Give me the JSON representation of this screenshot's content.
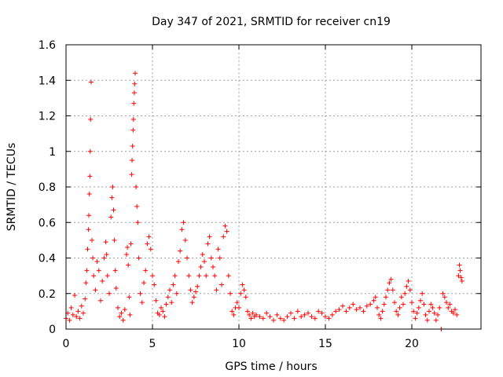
{
  "chart_data": {
    "type": "scatter",
    "title": "Day 347 of 2021, SRMTID for receiver cn19",
    "xlabel": "GPS time / hours",
    "ylabel": "SRMTID / TECUs",
    "xlim": [
      0,
      24
    ],
    "ylim": [
      0,
      1.6
    ],
    "xticks": [
      {
        "value": 0,
        "label": "0"
      },
      {
        "value": 5,
        "label": "5"
      },
      {
        "value": 10,
        "label": "10"
      },
      {
        "value": 15,
        "label": "15"
      },
      {
        "value": 20,
        "label": "20"
      }
    ],
    "yticks": [
      {
        "value": 0,
        "label": "0"
      },
      {
        "value": 0.2,
        "label": "0.2"
      },
      {
        "value": 0.4,
        "label": "0.4"
      },
      {
        "value": 0.6,
        "label": "0.6"
      },
      {
        "value": 0.8,
        "label": "0.8"
      },
      {
        "value": 1.0,
        "label": "1"
      },
      {
        "value": 1.2,
        "label": "1.2"
      },
      {
        "value": 1.4,
        "label": "1.4"
      },
      {
        "value": 1.6,
        "label": "1.6"
      }
    ],
    "grid": true,
    "marker": "plus",
    "color": "#ff0000",
    "series": [
      {
        "name": "SRMTID",
        "points": [
          [
            0.0,
            0.06
          ],
          [
            0.1,
            0.09
          ],
          [
            0.2,
            0.05
          ],
          [
            0.3,
            0.12
          ],
          [
            0.4,
            0.08
          ],
          [
            0.5,
            0.19
          ],
          [
            0.6,
            0.07
          ],
          [
            0.7,
            0.1
          ],
          [
            0.8,
            0.06
          ],
          [
            0.9,
            0.13
          ],
          [
            1.0,
            0.09
          ],
          [
            1.1,
            0.17
          ],
          [
            1.15,
            0.26
          ],
          [
            1.2,
            0.33
          ],
          [
            1.25,
            0.45
          ],
          [
            1.3,
            0.56
          ],
          [
            1.32,
            0.64
          ],
          [
            1.35,
            0.76
          ],
          [
            1.38,
            0.86
          ],
          [
            1.4,
            1.0
          ],
          [
            1.42,
            1.18
          ],
          [
            1.45,
            1.39
          ],
          [
            1.5,
            0.5
          ],
          [
            1.55,
            0.4
          ],
          [
            1.6,
            0.3
          ],
          [
            1.7,
            0.22
          ],
          [
            1.8,
            0.38
          ],
          [
            1.9,
            0.33
          ],
          [
            2.0,
            0.16
          ],
          [
            2.1,
            0.27
          ],
          [
            2.2,
            0.4
          ],
          [
            2.3,
            0.49
          ],
          [
            2.35,
            0.42
          ],
          [
            2.4,
            0.3
          ],
          [
            2.5,
            0.2
          ],
          [
            2.6,
            0.63
          ],
          [
            2.65,
            0.74
          ],
          [
            2.7,
            0.8
          ],
          [
            2.75,
            0.67
          ],
          [
            2.8,
            0.5
          ],
          [
            2.85,
            0.33
          ],
          [
            2.9,
            0.23
          ],
          [
            3.0,
            0.12
          ],
          [
            3.1,
            0.07
          ],
          [
            3.2,
            0.09
          ],
          [
            3.3,
            0.05
          ],
          [
            3.4,
            0.11
          ],
          [
            3.5,
            0.42
          ],
          [
            3.55,
            0.46
          ],
          [
            3.6,
            0.36
          ],
          [
            3.65,
            0.18
          ],
          [
            3.7,
            0.08
          ],
          [
            3.75,
            0.48
          ],
          [
            3.8,
            0.87
          ],
          [
            3.82,
            0.95
          ],
          [
            3.85,
            1.03
          ],
          [
            3.88,
            1.12
          ],
          [
            3.9,
            1.18
          ],
          [
            3.92,
            1.27
          ],
          [
            3.95,
            1.33
          ],
          [
            3.97,
            1.38
          ],
          [
            4.0,
            1.44
          ],
          [
            4.05,
            0.8
          ],
          [
            4.1,
            0.69
          ],
          [
            4.15,
            0.6
          ],
          [
            4.2,
            0.4
          ],
          [
            4.3,
            0.2
          ],
          [
            4.4,
            0.15
          ],
          [
            4.5,
            0.26
          ],
          [
            4.6,
            0.33
          ],
          [
            4.7,
            0.48
          ],
          [
            4.8,
            0.52
          ],
          [
            4.9,
            0.45
          ],
          [
            5.0,
            0.3
          ],
          [
            5.1,
            0.25
          ],
          [
            5.2,
            0.16
          ],
          [
            5.3,
            0.09
          ],
          [
            5.4,
            0.08
          ],
          [
            5.5,
            0.12
          ],
          [
            5.6,
            0.1
          ],
          [
            5.7,
            0.07
          ],
          [
            5.8,
            0.14
          ],
          [
            5.9,
            0.18
          ],
          [
            6.0,
            0.22
          ],
          [
            6.1,
            0.15
          ],
          [
            6.2,
            0.25
          ],
          [
            6.3,
            0.3
          ],
          [
            6.4,
            0.2
          ],
          [
            6.5,
            0.38
          ],
          [
            6.6,
            0.44
          ],
          [
            6.7,
            0.56
          ],
          [
            6.8,
            0.6
          ],
          [
            6.9,
            0.5
          ],
          [
            7.0,
            0.4
          ],
          [
            7.1,
            0.3
          ],
          [
            7.2,
            0.22
          ],
          [
            7.3,
            0.15
          ],
          [
            7.4,
            0.18
          ],
          [
            7.5,
            0.21
          ],
          [
            7.6,
            0.24
          ],
          [
            7.7,
            0.3
          ],
          [
            7.8,
            0.35
          ],
          [
            7.9,
            0.42
          ],
          [
            8.0,
            0.38
          ],
          [
            8.1,
            0.3
          ],
          [
            8.2,
            0.48
          ],
          [
            8.3,
            0.52
          ],
          [
            8.4,
            0.4
          ],
          [
            8.5,
            0.35
          ],
          [
            8.6,
            0.3
          ],
          [
            8.7,
            0.22
          ],
          [
            8.8,
            0.45
          ],
          [
            8.9,
            0.4
          ],
          [
            9.0,
            0.25
          ],
          [
            9.1,
            0.52
          ],
          [
            9.2,
            0.58
          ],
          [
            9.3,
            0.55
          ],
          [
            9.4,
            0.3
          ],
          [
            9.5,
            0.2
          ],
          [
            9.6,
            0.1
          ],
          [
            9.7,
            0.08
          ],
          [
            9.8,
            0.12
          ],
          [
            9.9,
            0.15
          ],
          [
            10.0,
            0.12
          ],
          [
            10.1,
            0.2
          ],
          [
            10.2,
            0.25
          ],
          [
            10.3,
            0.22
          ],
          [
            10.4,
            0.18
          ],
          [
            10.5,
            0.1
          ],
          [
            10.6,
            0.08
          ],
          [
            10.7,
            0.06
          ],
          [
            10.8,
            0.09
          ],
          [
            10.9,
            0.07
          ],
          [
            11.0,
            0.08
          ],
          [
            11.2,
            0.07
          ],
          [
            11.4,
            0.06
          ],
          [
            11.6,
            0.09
          ],
          [
            11.8,
            0.07
          ],
          [
            12.0,
            0.05
          ],
          [
            12.2,
            0.08
          ],
          [
            12.4,
            0.06
          ],
          [
            12.6,
            0.05
          ],
          [
            12.8,
            0.07
          ],
          [
            13.0,
            0.09
          ],
          [
            13.2,
            0.06
          ],
          [
            13.4,
            0.1
          ],
          [
            13.6,
            0.07
          ],
          [
            13.8,
            0.08
          ],
          [
            14.0,
            0.09
          ],
          [
            14.2,
            0.07
          ],
          [
            14.4,
            0.06
          ],
          [
            14.6,
            0.1
          ],
          [
            14.8,
            0.09
          ],
          [
            15.0,
            0.07
          ],
          [
            15.2,
            0.06
          ],
          [
            15.4,
            0.08
          ],
          [
            15.6,
            0.1
          ],
          [
            15.8,
            0.11
          ],
          [
            16.0,
            0.13
          ],
          [
            16.2,
            0.1
          ],
          [
            16.4,
            0.12
          ],
          [
            16.6,
            0.14
          ],
          [
            16.8,
            0.11
          ],
          [
            17.0,
            0.12
          ],
          [
            17.2,
            0.1
          ],
          [
            17.4,
            0.13
          ],
          [
            17.6,
            0.14
          ],
          [
            17.8,
            0.16
          ],
          [
            17.9,
            0.18
          ],
          [
            18.0,
            0.12
          ],
          [
            18.1,
            0.08
          ],
          [
            18.2,
            0.06
          ],
          [
            18.3,
            0.1
          ],
          [
            18.4,
            0.14
          ],
          [
            18.5,
            0.18
          ],
          [
            18.6,
            0.22
          ],
          [
            18.7,
            0.26
          ],
          [
            18.8,
            0.28
          ],
          [
            18.9,
            0.22
          ],
          [
            19.0,
            0.15
          ],
          [
            19.1,
            0.1
          ],
          [
            19.2,
            0.08
          ],
          [
            19.3,
            0.12
          ],
          [
            19.4,
            0.18
          ],
          [
            19.5,
            0.14
          ],
          [
            19.6,
            0.2
          ],
          [
            19.7,
            0.24
          ],
          [
            19.8,
            0.27
          ],
          [
            19.9,
            0.22
          ],
          [
            20.0,
            0.15
          ],
          [
            20.1,
            0.1
          ],
          [
            20.2,
            0.06
          ],
          [
            20.3,
            0.09
          ],
          [
            20.4,
            0.12
          ],
          [
            20.5,
            0.16
          ],
          [
            20.6,
            0.2
          ],
          [
            20.7,
            0.14
          ],
          [
            20.8,
            0.08
          ],
          [
            20.9,
            0.05
          ],
          [
            21.0,
            0.1
          ],
          [
            21.1,
            0.14
          ],
          [
            21.2,
            0.12
          ],
          [
            21.3,
            0.09
          ],
          [
            21.4,
            0.05
          ],
          [
            21.5,
            0.08
          ],
          [
            21.6,
            0.12
          ],
          [
            21.7,
            0.0
          ],
          [
            21.8,
            0.2
          ],
          [
            21.9,
            0.18
          ],
          [
            22.0,
            0.15
          ],
          [
            22.1,
            0.12
          ],
          [
            22.2,
            0.14
          ],
          [
            22.3,
            0.1
          ],
          [
            22.4,
            0.09
          ],
          [
            22.5,
            0.11
          ],
          [
            22.6,
            0.08
          ],
          [
            22.7,
            0.3
          ],
          [
            22.75,
            0.36
          ],
          [
            22.8,
            0.33
          ],
          [
            22.85,
            0.29
          ],
          [
            22.9,
            0.27
          ]
        ]
      }
    ]
  }
}
